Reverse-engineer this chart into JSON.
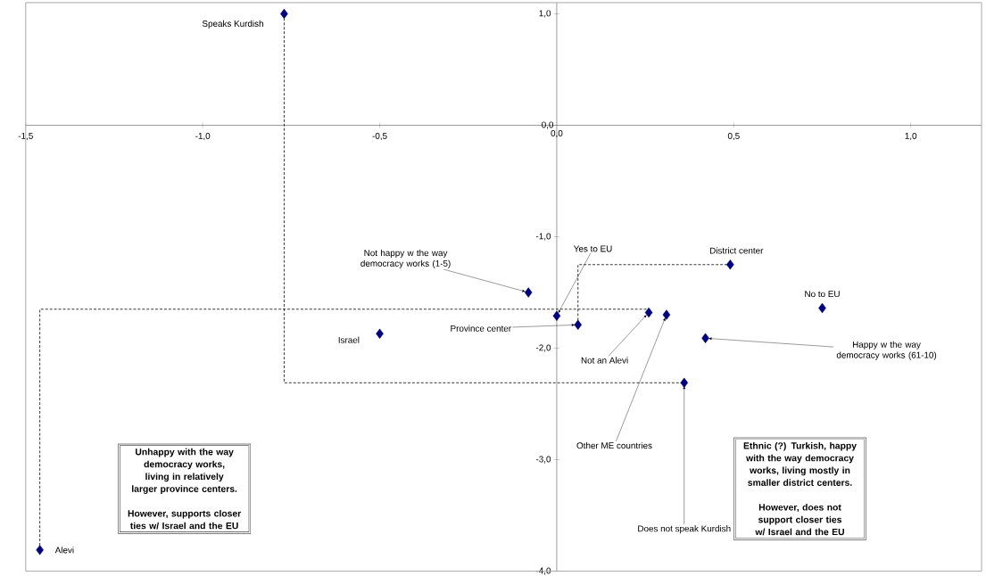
{
  "chart_data": {
    "type": "scatter",
    "xlim": [
      -1.5,
      1.2
    ],
    "ylim": [
      -4.0,
      1.1
    ],
    "xticks": [
      {
        "value": -1.5,
        "label": "-1,5"
      },
      {
        "value": -1.0,
        "label": "-1,0"
      },
      {
        "value": -0.5,
        "label": "-0,5"
      },
      {
        "value": 0,
        "label": "0,0"
      },
      {
        "value": 0.5,
        "label": "0,5"
      },
      {
        "value": 1.0,
        "label": "1,0"
      }
    ],
    "yticks": [
      {
        "value": -4.0,
        "label": "-4,0"
      },
      {
        "value": -3.0,
        "label": "-3,0"
      },
      {
        "value": -2.0,
        "label": "-2,0"
      },
      {
        "value": -1.0,
        "label": "-1,0"
      },
      {
        "value": 0,
        "label": "0,0"
      },
      {
        "value": 1.0,
        "label": "1,0"
      }
    ],
    "series": [
      {
        "color": "#000080",
        "marker": "diamond",
        "x": [
          -0.77,
          -1.46,
          -0.5,
          -0.08,
          0.0,
          0.06,
          0.26,
          0.31,
          0.42,
          0.36,
          0.49,
          0.75
        ],
        "values": [
          1.0,
          -3.81,
          -1.87,
          -1.5,
          -1.71,
          -1.79,
          -1.68,
          -1.7,
          -1.91,
          -2.31,
          -1.25,
          -1.64
        ]
      },
      {
        "type": "line",
        "color": "#000000",
        "marker": "none",
        "line_style": "dashed",
        "x": [
          -0.77,
          -0.77,
          0.36
        ],
        "values": [
          1.0,
          -2.31,
          -2.31
        ]
      },
      {
        "type": "line",
        "color": "#000000",
        "marker": "none",
        "line_style": "dashed",
        "x": [
          -1.46,
          -1.46,
          0.26
        ],
        "values": [
          -3.81,
          -1.65,
          -1.65
        ]
      },
      {
        "type": "line",
        "color": "#000000",
        "marker": "none",
        "line_style": "dashed",
        "x": [
          0.06,
          0.06,
          0.49
        ],
        "values": [
          -1.79,
          -1.25,
          -1.25
        ]
      }
    ],
    "annotations": [
      {
        "text": "Speaks Kurdish",
        "x": -0.77,
        "y": 1.0
      },
      {
        "text": "Alevi",
        "x": -1.46,
        "y": -3.81
      },
      {
        "text": "Israel",
        "x": -0.5,
        "y": -1.87
      },
      {
        "text": "Not happy w the way democracy works (1-5)",
        "x": -0.08,
        "y": -1.5
      },
      {
        "text": "Yes to EU",
        "x": 0.0,
        "y": -1.71
      },
      {
        "text": "Province center",
        "x": 0.06,
        "y": -1.79
      },
      {
        "text": "Not an Alevi",
        "x": 0.26,
        "y": -1.68
      },
      {
        "text": "Other ME countries",
        "x": 0.31,
        "y": -1.7
      },
      {
        "text": "Happy w the way democracy works (61-10)",
        "x": 0.42,
        "y": -1.91
      },
      {
        "text": "Does not speak Kurdish",
        "x": 0.36,
        "y": -2.31
      },
      {
        "text": "District center",
        "x": 0.49,
        "y": -1.25
      },
      {
        "text": "No to EU",
        "x": 0.75,
        "y": -1.64
      },
      "Unhappy with the way democracy works, living in relatively larger province centers.",
      "However, supports closer ties w/ Israel and the EU",
      "Ethnic (?) Turkish, happy with the way democracy works, living mostly in smaller district centers.",
      "However, does not support closer ties w/ Israel and the EU"
    ]
  }
}
